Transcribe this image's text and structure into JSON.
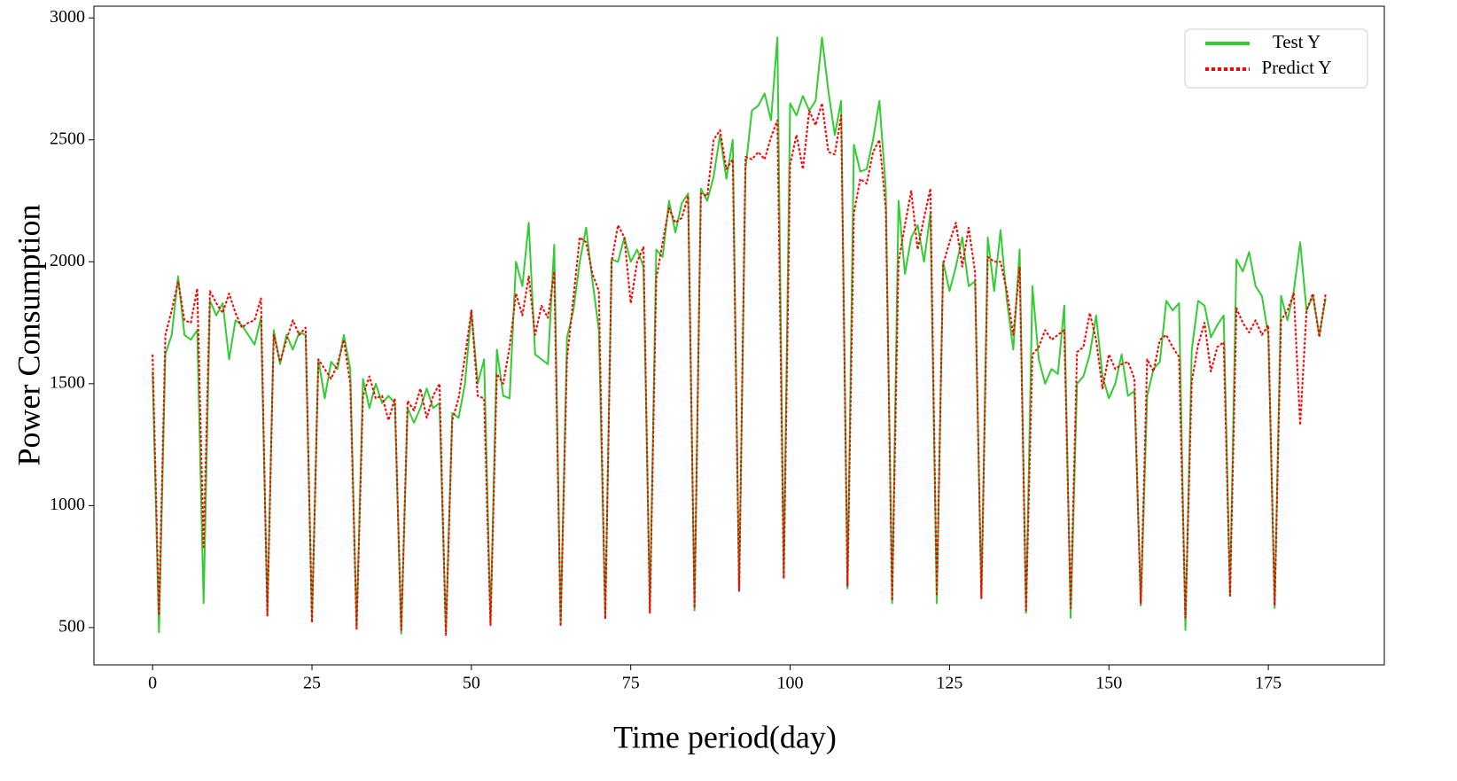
{
  "chart_data": {
    "type": "line",
    "xlabel": "Time period(day)",
    "ylabel": "Power Consumption",
    "x": [
      0,
      1,
      2,
      3,
      4,
      5,
      6,
      7,
      8,
      9,
      10,
      11,
      12,
      13,
      14,
      15,
      16,
      17,
      18,
      19,
      20,
      21,
      22,
      23,
      24,
      25,
      26,
      27,
      28,
      29,
      30,
      31,
      32,
      33,
      34,
      35,
      36,
      37,
      38,
      39,
      40,
      41,
      42,
      43,
      44,
      45,
      46,
      47,
      48,
      49,
      50,
      51,
      52,
      53,
      54,
      55,
      56,
      57,
      58,
      59,
      60,
      61,
      62,
      63,
      64,
      65,
      66,
      67,
      68,
      69,
      70,
      71,
      72,
      73,
      74,
      75,
      76,
      77,
      78,
      79,
      80,
      81,
      82,
      83,
      84,
      85,
      86,
      87,
      88,
      89,
      90,
      91,
      92,
      93,
      94,
      95,
      96,
      97,
      98,
      99,
      100,
      101,
      102,
      103,
      104,
      105,
      106,
      107,
      108,
      109,
      110,
      111,
      112,
      113,
      114,
      115,
      116,
      117,
      118,
      119,
      120,
      121,
      122,
      123,
      124,
      125,
      126,
      127,
      128,
      129,
      130,
      131,
      132,
      133,
      134,
      135,
      136,
      137,
      138,
      139,
      140,
      141,
      142,
      143,
      144,
      145,
      146,
      147,
      148,
      149,
      150,
      151,
      152,
      153,
      154,
      155,
      156,
      157,
      158,
      159,
      160,
      161,
      162,
      163,
      164,
      165,
      166,
      167,
      168,
      169,
      170,
      171,
      172,
      173,
      174,
      175,
      176,
      177,
      178,
      179,
      180,
      181,
      182,
      183,
      184
    ],
    "series": [
      {
        "name": "Test Y",
        "color": "#33cc33",
        "style": "solid",
        "values": [
          1550,
          480,
          1620,
          1700,
          1940,
          1700,
          1680,
          1720,
          600,
          1840,
          1780,
          1830,
          1600,
          1760,
          1740,
          1700,
          1660,
          1770,
          560,
          1720,
          1580,
          1700,
          1640,
          1710,
          1700,
          530,
          1600,
          1440,
          1590,
          1560,
          1700,
          1560,
          500,
          1520,
          1400,
          1500,
          1420,
          1450,
          1420,
          475,
          1400,
          1340,
          1400,
          1480,
          1400,
          1420,
          480,
          1380,
          1360,
          1500,
          1800,
          1500,
          1600,
          520,
          1640,
          1450,
          1440,
          2000,
          1900,
          2160,
          1620,
          1600,
          1580,
          2070,
          510,
          1690,
          1800,
          2000,
          2140,
          1920,
          1720,
          540,
          2010,
          2000,
          2100,
          2000,
          2050,
          1980,
          570,
          2050,
          2020,
          2250,
          2120,
          2240,
          2280,
          570,
          2300,
          2250,
          2350,
          2520,
          2340,
          2500,
          650,
          2380,
          2620,
          2640,
          2690,
          2580,
          2920,
          710,
          2650,
          2600,
          2680,
          2620,
          2660,
          2920,
          2700,
          2520,
          2660,
          660,
          2480,
          2370,
          2380,
          2500,
          2660,
          2300,
          600,
          2250,
          1950,
          2100,
          2150,
          2000,
          2200,
          600,
          2000,
          1880,
          1980,
          2100,
          1900,
          1920,
          620,
          2100,
          1880,
          2130,
          1840,
          1640,
          2050,
          560,
          1900,
          1600,
          1500,
          1560,
          1540,
          1820,
          540,
          1500,
          1530,
          1620,
          1780,
          1530,
          1440,
          1500,
          1620,
          1450,
          1470,
          590,
          1450,
          1560,
          1590,
          1840,
          1800,
          1830,
          490,
          1640,
          1840,
          1820,
          1690,
          1740,
          1780,
          640,
          2010,
          1960,
          2040,
          1900,
          1860,
          1700,
          580,
          1860,
          1760,
          1880,
          2080,
          1800,
          1860,
          1700,
          1850
        ]
      },
      {
        "name": "Predict Y",
        "color": "#ff0000",
        "style": "dotted",
        "values": [
          1620,
          550,
          1700,
          1800,
          1920,
          1760,
          1750,
          1890,
          830,
          1880,
          1830,
          1790,
          1870,
          1790,
          1730,
          1750,
          1760,
          1850,
          545,
          1700,
          1590,
          1680,
          1760,
          1700,
          1730,
          520,
          1600,
          1560,
          1520,
          1580,
          1680,
          1500,
          495,
          1450,
          1530,
          1440,
          1450,
          1350,
          1440,
          490,
          1430,
          1390,
          1480,
          1360,
          1450,
          1500,
          470,
          1350,
          1440,
          1610,
          1800,
          1450,
          1440,
          510,
          1540,
          1500,
          1650,
          1870,
          1780,
          1940,
          1700,
          1820,
          1770,
          1960,
          505,
          1600,
          1850,
          2100,
          2080,
          1950,
          1880,
          535,
          2000,
          2150,
          2100,
          1830,
          2000,
          2060,
          560,
          1930,
          2080,
          2220,
          2160,
          2180,
          2270,
          580,
          2280,
          2270,
          2500,
          2540,
          2380,
          2420,
          650,
          2430,
          2420,
          2450,
          2420,
          2510,
          2580,
          700,
          2400,
          2520,
          2380,
          2620,
          2560,
          2650,
          2450,
          2440,
          2600,
          670,
          2200,
          2340,
          2320,
          2450,
          2500,
          2220,
          610,
          2000,
          2150,
          2290,
          2050,
          2180,
          2300,
          630,
          1990,
          2080,
          2160,
          1980,
          2140,
          1960,
          620,
          2020,
          2000,
          2000,
          1880,
          1700,
          1980,
          570,
          1620,
          1650,
          1720,
          1680,
          1700,
          1720,
          580,
          1630,
          1650,
          1790,
          1680,
          1480,
          1620,
          1560,
          1580,
          1590,
          1520,
          600,
          1600,
          1550,
          1680,
          1700,
          1650,
          1610,
          540,
          1510,
          1660,
          1750,
          1550,
          1650,
          1670,
          630,
          1810,
          1750,
          1710,
          1760,
          1700,
          1740,
          590,
          1760,
          1800,
          1870,
          1330,
          1800,
          1870,
          1690,
          1870
        ]
      }
    ],
    "xlim": [
      -9.2,
      193.2
    ],
    "ylim": [
      347,
      3048
    ],
    "xticks": [
      0,
      25,
      50,
      75,
      100,
      125,
      150,
      175
    ],
    "yticks": [
      500,
      1000,
      1500,
      2000,
      2500,
      3000
    ],
    "grid": false,
    "legend": "upper right"
  }
}
